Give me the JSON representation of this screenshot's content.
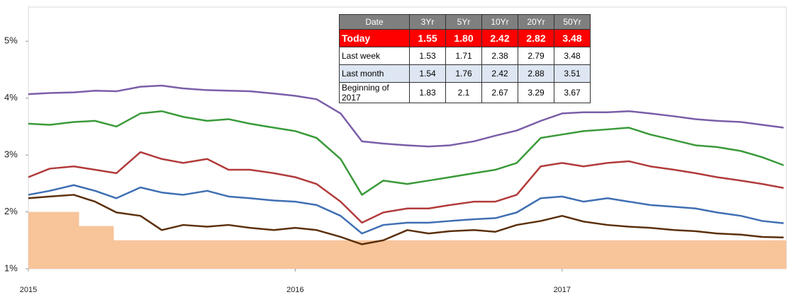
{
  "chart_data": {
    "type": "line",
    "x": [
      2015.0,
      2015.08,
      2015.17,
      2015.25,
      2015.33,
      2015.42,
      2015.5,
      2015.58,
      2015.67,
      2015.75,
      2015.83,
      2015.92,
      2016.0,
      2016.08,
      2016.17,
      2016.25,
      2016.33,
      2016.42,
      2016.5,
      2016.58,
      2016.67,
      2016.75,
      2016.83,
      2016.92,
      2017.0,
      2017.08,
      2017.17,
      2017.25,
      2017.33,
      2017.42,
      2017.5,
      2017.58,
      2017.67,
      2017.75,
      2017.83
    ],
    "series": [
      {
        "color": "#7a5ea8",
        "values": [
          4.07,
          4.09,
          4.1,
          4.13,
          4.12,
          4.2,
          4.22,
          4.17,
          4.14,
          4.13,
          4.12,
          4.08,
          4.04,
          3.98,
          3.73,
          3.24,
          3.2,
          3.17,
          3.15,
          3.17,
          3.24,
          3.34,
          3.43,
          3.6,
          3.73,
          3.75,
          3.75,
          3.77,
          3.73,
          3.68,
          3.63,
          3.6,
          3.58,
          3.53,
          3.48
        ]
      },
      {
        "color": "#3a9a3a",
        "values": [
          3.55,
          3.53,
          3.58,
          3.6,
          3.5,
          3.73,
          3.77,
          3.67,
          3.6,
          3.63,
          3.55,
          3.48,
          3.42,
          3.3,
          2.93,
          2.3,
          2.55,
          2.49,
          2.55,
          2.61,
          2.68,
          2.74,
          2.86,
          3.3,
          3.36,
          3.42,
          3.45,
          3.48,
          3.36,
          3.26,
          3.17,
          3.14,
          3.07,
          2.96,
          2.82
        ]
      },
      {
        "color": "#b23b3b",
        "values": [
          2.61,
          2.76,
          2.8,
          2.74,
          2.68,
          3.05,
          2.93,
          2.86,
          2.93,
          2.74,
          2.74,
          2.68,
          2.61,
          2.49,
          2.18,
          1.81,
          1.99,
          2.06,
          2.06,
          2.12,
          2.18,
          2.18,
          2.3,
          2.8,
          2.86,
          2.8,
          2.86,
          2.89,
          2.8,
          2.74,
          2.68,
          2.61,
          2.55,
          2.49,
          2.42
        ]
      },
      {
        "color": "#3f6fb3",
        "values": [
          2.3,
          2.37,
          2.47,
          2.37,
          2.24,
          2.43,
          2.34,
          2.3,
          2.37,
          2.27,
          2.24,
          2.2,
          2.18,
          2.12,
          1.93,
          1.62,
          1.77,
          1.81,
          1.81,
          1.84,
          1.87,
          1.89,
          1.99,
          2.24,
          2.27,
          2.18,
          2.24,
          2.18,
          2.12,
          2.09,
          2.06,
          1.99,
          1.93,
          1.84,
          1.8
        ]
      },
      {
        "color": "#5b300c",
        "values": [
          2.24,
          2.27,
          2.3,
          2.18,
          1.99,
          1.93,
          1.68,
          1.77,
          1.74,
          1.77,
          1.72,
          1.68,
          1.72,
          1.68,
          1.56,
          1.43,
          1.5,
          1.68,
          1.62,
          1.66,
          1.68,
          1.65,
          1.77,
          1.84,
          1.93,
          1.83,
          1.77,
          1.74,
          1.72,
          1.68,
          1.66,
          1.62,
          1.6,
          1.56,
          1.55
        ]
      }
    ],
    "area": {
      "color": "#f8c49a",
      "x": [
        2015.0,
        2015.19,
        2015.19,
        2015.32,
        2015.32,
        2017.84
      ],
      "values": [
        2,
        2,
        1.75,
        1.75,
        1.5,
        1.5
      ]
    },
    "xlim": [
      2015,
      2017.84
    ],
    "xticks": [
      2015,
      2016,
      2017
    ],
    "ylim": [
      1,
      5.6
    ],
    "yticks": [
      {
        "value": 1,
        "label": "1%"
      },
      {
        "value": 2,
        "label": "2%"
      },
      {
        "value": 3,
        "label": "3%"
      },
      {
        "value": 4,
        "label": "4%"
      },
      {
        "value": 5,
        "label": "5%"
      }
    ]
  },
  "table": {
    "header": [
      "Date",
      "3Yr",
      "5Yr",
      "10Yr",
      "20Yr",
      "50Yr"
    ],
    "rows": [
      [
        "Today",
        "1.55",
        "1.80",
        "2.42",
        "2.82",
        "3.48"
      ],
      [
        "Last week",
        "1.53",
        "1.71",
        "2.38",
        "2.79",
        "3.48"
      ],
      [
        "Last month",
        "1.54",
        "1.76",
        "2.42",
        "2.88",
        "3.51"
      ],
      [
        "Beginning of 2017",
        "1.83",
        "2.1",
        "2.67",
        "3.29",
        "3.67"
      ]
    ]
  }
}
